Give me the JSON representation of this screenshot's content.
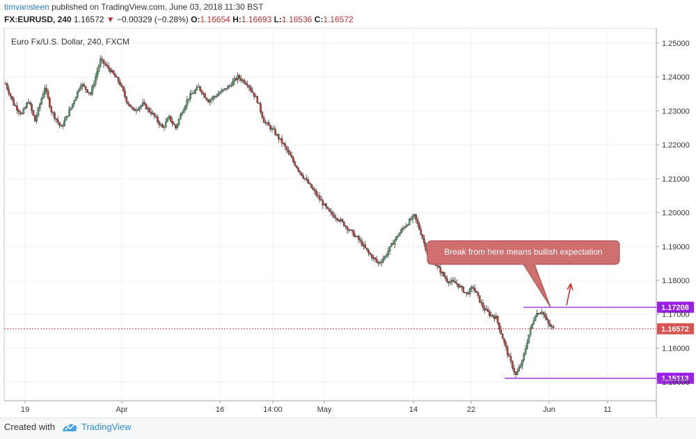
{
  "header": {
    "author": "timvansteen",
    "published_text": "published on TradingView.com, June 03, 2018 11:30 BST",
    "symbol": "FX:EURUSD, 240",
    "last": "1.16572",
    "change_arrow": "▼",
    "change": "−0.00329 (−0.28%)",
    "o_label": "O:",
    "o_value": "1.16654",
    "h_label": "H:",
    "h_value": "1.16693",
    "l_label": "L:",
    "l_value": "1.16536",
    "c_label": "C:",
    "c_value": "1.16572"
  },
  "chart_data": {
    "type": "candlestick",
    "title": "Euro Fx/U.S. Dollar, 240, FXCM",
    "ylim": [
      1.1445,
      1.2545
    ],
    "y_ticks": [
      "1.25000",
      "1.24000",
      "1.23000",
      "1.22000",
      "1.21000",
      "1.20000",
      "1.19000",
      "1.18000",
      "1.17000",
      "1.16000",
      "1.15000"
    ],
    "x_ticks": [
      "19",
      "Apr",
      "16",
      "14:00",
      "May",
      "14",
      "22",
      "Jun",
      "11"
    ],
    "series_path": [
      [
        0,
        1.238
      ],
      [
        5,
        1.232
      ],
      [
        10,
        1.229
      ],
      [
        14,
        1.233
      ],
      [
        18,
        1.227
      ],
      [
        24,
        1.237
      ],
      [
        28,
        1.23
      ],
      [
        34,
        1.225
      ],
      [
        40,
        1.231
      ],
      [
        46,
        1.238
      ],
      [
        52,
        1.235
      ],
      [
        58,
        1.245
      ],
      [
        64,
        1.242
      ],
      [
        70,
        1.238
      ],
      [
        74,
        1.233
      ],
      [
        78,
        1.23
      ],
      [
        84,
        1.232
      ],
      [
        90,
        1.229
      ],
      [
        96,
        1.225
      ],
      [
        100,
        1.228
      ],
      [
        104,
        1.225
      ],
      [
        108,
        1.23
      ],
      [
        112,
        1.234
      ],
      [
        118,
        1.237
      ],
      [
        124,
        1.233
      ],
      [
        130,
        1.235
      ],
      [
        136,
        1.237
      ],
      [
        142,
        1.24
      ],
      [
        148,
        1.238
      ],
      [
        154,
        1.233
      ],
      [
        158,
        1.227
      ],
      [
        164,
        1.224
      ],
      [
        170,
        1.22
      ],
      [
        176,
        1.215
      ],
      [
        180,
        1.212
      ],
      [
        186,
        1.208
      ],
      [
        192,
        1.204
      ],
      [
        198,
        1.2
      ],
      [
        204,
        1.198
      ],
      [
        210,
        1.195
      ],
      [
        216,
        1.192
      ],
      [
        222,
        1.188
      ],
      [
        228,
        1.185
      ],
      [
        232,
        1.187
      ],
      [
        238,
        1.192
      ],
      [
        244,
        1.196
      ],
      [
        250,
        1.199
      ],
      [
        254,
        1.194
      ],
      [
        258,
        1.188
      ],
      [
        264,
        1.184
      ],
      [
        270,
        1.18
      ],
      [
        276,
        1.179
      ],
      [
        282,
        1.176
      ],
      [
        286,
        1.178
      ],
      [
        292,
        1.172
      ],
      [
        296,
        1.17
      ],
      [
        300,
        1.169
      ],
      [
        304,
        1.163
      ],
      [
        308,
        1.157
      ],
      [
        312,
        1.152
      ],
      [
        316,
        1.156
      ],
      [
        320,
        1.164
      ],
      [
        324,
        1.17
      ],
      [
        328,
        1.171
      ],
      [
        332,
        1.167
      ],
      [
        335,
        1.1657
      ]
    ],
    "extra_candles": 0,
    "last_price": 1.16572,
    "last_price_label": "1.16572",
    "levels": [
      {
        "value": 1.17208,
        "label": "1.17208",
        "color": "#9b1fe8"
      },
      {
        "value": 1.15113,
        "label": "1.15113",
        "color": "#9b1fe8"
      }
    ],
    "annotation": {
      "text": "Break from here means bullish expectation",
      "fill": "#cf6f6f",
      "border": "#a94545"
    },
    "up_color": "#4f9e68",
    "down_color": "#c0392b",
    "grid": true
  },
  "footer": {
    "created": "Created with",
    "brand": "TradingView"
  }
}
